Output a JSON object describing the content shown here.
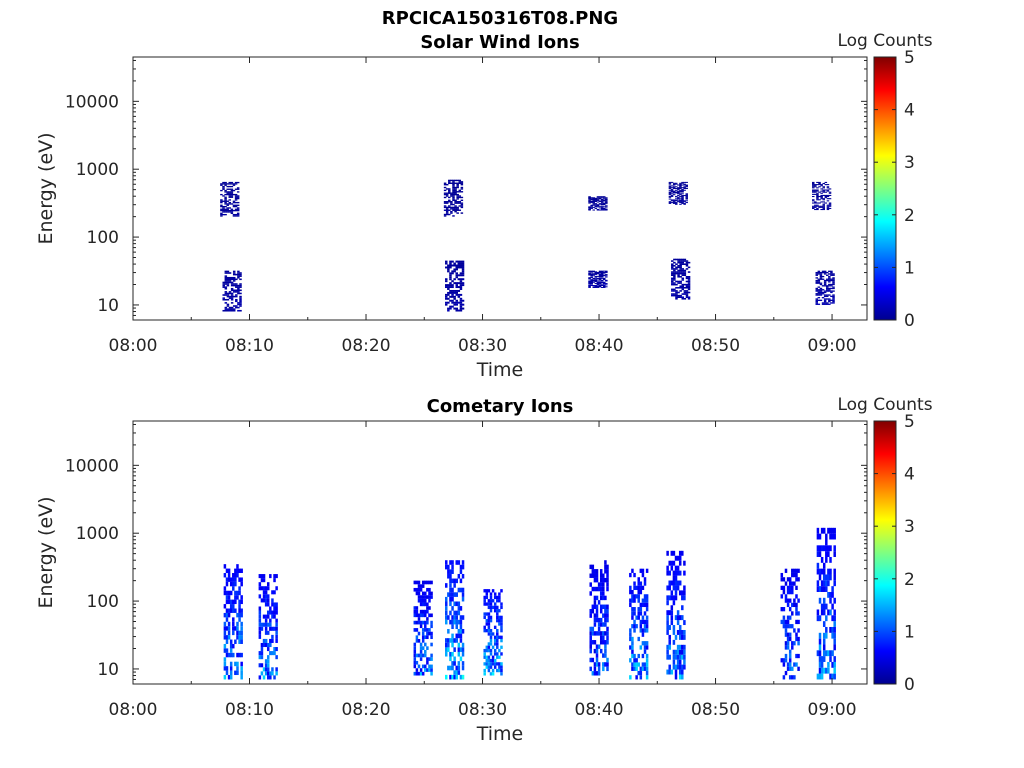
{
  "figure": {
    "title": "RPCICA150316T08.PNG"
  },
  "chart_data": [
    {
      "type": "heatmap",
      "title": "Solar Wind Ions",
      "xlabel": "Time",
      "ylabel": "Energy (eV)",
      "x_ticks": [
        "08:00",
        "08:10",
        "08:20",
        "08:30",
        "08:40",
        "08:50",
        "09:00"
      ],
      "x_range_minutes": [
        0,
        63
      ],
      "y_scale": "log",
      "y_range": [
        6,
        45000
      ],
      "y_ticks": [
        "10",
        "100",
        "1000",
        "10000"
      ],
      "colorbar": {
        "label": "Log Counts",
        "range": [
          0,
          5
        ],
        "ticks": [
          "0",
          "1",
          "2",
          "3",
          "4",
          "5"
        ]
      },
      "events": [
        {
          "t": 8.2,
          "e_lo": 200,
          "e_hi": 650,
          "level": 0.1
        },
        {
          "t": 8.4,
          "e_lo": 8,
          "e_hi": 32,
          "level": 0.2
        },
        {
          "t": 27.4,
          "e_lo": 200,
          "e_hi": 700,
          "level": 0.1
        },
        {
          "t": 27.5,
          "e_lo": 8,
          "e_hi": 45,
          "level": 0.2
        },
        {
          "t": 39.8,
          "e_lo": 250,
          "e_hi": 400,
          "level": 0.1
        },
        {
          "t": 39.8,
          "e_lo": 18,
          "e_hi": 32,
          "level": 0.2
        },
        {
          "t": 46.7,
          "e_lo": 300,
          "e_hi": 650,
          "level": 0.1
        },
        {
          "t": 46.9,
          "e_lo": 12,
          "e_hi": 48,
          "level": 0.2
        },
        {
          "t": 59.0,
          "e_lo": 250,
          "e_hi": 650,
          "level": 0.1
        },
        {
          "t": 59.3,
          "e_lo": 10,
          "e_hi": 32,
          "level": 0.2
        }
      ]
    },
    {
      "type": "heatmap",
      "title": "Cometary Ions",
      "xlabel": "Time",
      "ylabel": "Energy (eV)",
      "x_ticks": [
        "08:00",
        "08:10",
        "08:20",
        "08:30",
        "08:40",
        "08:50",
        "09:00"
      ],
      "x_range_minutes": [
        0,
        63
      ],
      "y_scale": "log",
      "y_range": [
        6,
        45000
      ],
      "y_ticks": [
        "10",
        "100",
        "1000",
        "10000"
      ],
      "colorbar": {
        "label": "Log Counts",
        "range": [
          0,
          5
        ],
        "ticks": [
          "0",
          "1",
          "2",
          "3",
          "4",
          "5"
        ]
      },
      "events": [
        {
          "t": 8.5,
          "e_lo": 7,
          "e_hi": 350,
          "level": 1.6
        },
        {
          "t": 11.5,
          "e_lo": 7,
          "e_hi": 250,
          "level": 1.5
        },
        {
          "t": 24.8,
          "e_lo": 8,
          "e_hi": 200,
          "level": 1.4
        },
        {
          "t": 27.5,
          "e_lo": 7,
          "e_hi": 400,
          "level": 1.8
        },
        {
          "t": 30.8,
          "e_lo": 8,
          "e_hi": 150,
          "level": 1.7
        },
        {
          "t": 39.9,
          "e_lo": 8,
          "e_hi": 400,
          "level": 1.3
        },
        {
          "t": 43.3,
          "e_lo": 7,
          "e_hi": 300,
          "level": 1.6
        },
        {
          "t": 46.5,
          "e_lo": 7,
          "e_hi": 550,
          "level": 1.5
        },
        {
          "t": 56.3,
          "e_lo": 7,
          "e_hi": 300,
          "level": 1.4
        },
        {
          "t": 59.4,
          "e_lo": 7,
          "e_hi": 1200,
          "level": 1.5
        }
      ]
    }
  ]
}
